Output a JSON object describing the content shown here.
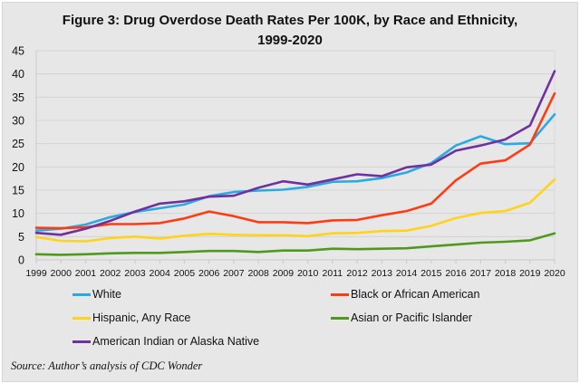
{
  "chart_data": {
    "type": "line",
    "title": "Figure 3: Drug Overdose Death Rates Per 100K, by Race and Ethnicity, 1999-2020",
    "title_lines": [
      "Figure 3: Drug Overdose Death Rates Per 100K, by Race and Ethnicity,",
      "1999-2020"
    ],
    "xlabel": "",
    "ylabel": "",
    "ylim": [
      0,
      45
    ],
    "yticks": [
      0,
      5,
      10,
      15,
      20,
      25,
      30,
      35,
      40,
      45
    ],
    "grid": true,
    "legend_placement": "bottom",
    "x": [
      "1999",
      "2000",
      "2001",
      "2002",
      "2003",
      "2004",
      "2005",
      "2006",
      "2007",
      "2008",
      "2009",
      "2010",
      "2011",
      "2012",
      "2013",
      "2014",
      "2015",
      "2016",
      "2017",
      "2018",
      "2019",
      "2020"
    ],
    "series": [
      {
        "name": "White",
        "color": "#29abe2",
        "values": [
          6.3,
          6.7,
          7.6,
          9.2,
          10.3,
          11.1,
          11.9,
          13.7,
          14.6,
          14.9,
          15.1,
          15.7,
          16.8,
          16.9,
          17.6,
          18.8,
          20.8,
          24.6,
          26.6,
          24.9,
          25.1,
          31.3
        ]
      },
      {
        "name": "Black or African American",
        "color": "#ff3b14",
        "values": [
          6.9,
          6.8,
          7.0,
          7.7,
          7.7,
          7.9,
          8.9,
          10.4,
          9.4,
          8.1,
          8.1,
          7.9,
          8.5,
          8.6,
          9.6,
          10.5,
          12.1,
          17.1,
          20.7,
          21.4,
          24.8,
          35.8
        ]
      },
      {
        "name": "Hispanic, Any Race",
        "color": "#ffd21c",
        "values": [
          4.9,
          4.1,
          4.0,
          4.7,
          5.0,
          4.6,
          5.2,
          5.6,
          5.4,
          5.3,
          5.3,
          5.1,
          5.7,
          5.8,
          6.2,
          6.3,
          7.3,
          9.0,
          10.1,
          10.5,
          12.3,
          17.3
        ]
      },
      {
        "name": "Asian or Pacific Islander",
        "color": "#4f9a1d",
        "values": [
          1.2,
          1.1,
          1.2,
          1.4,
          1.5,
          1.5,
          1.7,
          1.9,
          1.9,
          1.7,
          2.0,
          2.0,
          2.4,
          2.3,
          2.4,
          2.5,
          2.9,
          3.3,
          3.7,
          3.9,
          4.2,
          5.7
        ]
      },
      {
        "name": "American Indian or Alaska Native",
        "color": "#7030a0",
        "values": [
          5.8,
          5.4,
          6.7,
          8.4,
          10.4,
          12.1,
          12.6,
          13.6,
          13.8,
          15.5,
          16.9,
          16.2,
          17.3,
          18.4,
          18.0,
          19.9,
          20.5,
          23.5,
          24.6,
          25.9,
          28.9,
          40.6
        ]
      }
    ]
  },
  "source": "Source: Author’s analysis of CDC Wonder"
}
